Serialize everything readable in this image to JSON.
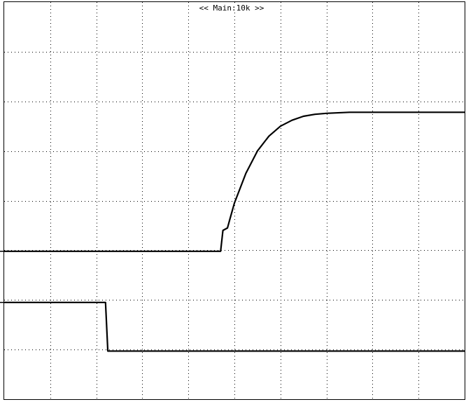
{
  "header": {
    "label": "<< Main:10k >>"
  },
  "colors": {
    "background": "#ffffff",
    "trace": "#000000",
    "grid": "#000000"
  },
  "chart_data": {
    "type": "line",
    "title": "",
    "xlabel": "",
    "ylabel": "",
    "grid": true,
    "grid_style": "dotted",
    "x_divisions": 10,
    "y_divisions": 8,
    "xlim": [
      0,
      10
    ],
    "ylim": [
      0,
      8
    ],
    "series": [
      {
        "name": "",
        "x": [
          0,
          4.7,
          4.75,
          4.85,
          4.9,
          5.0,
          5.25,
          5.5,
          5.75,
          6.0,
          6.25,
          6.5,
          6.75,
          7.0,
          7.5,
          8.0,
          9.0,
          10.0
        ],
        "y": [
          2.98,
          2.98,
          3.4,
          3.45,
          3.62,
          3.95,
          4.55,
          5.0,
          5.3,
          5.5,
          5.62,
          5.7,
          5.74,
          5.76,
          5.78,
          5.78,
          5.78,
          5.78
        ]
      },
      {
        "name": "",
        "x": [
          0,
          2.2,
          2.25,
          10.0
        ],
        "y": [
          1.95,
          1.95,
          0.97,
          0.97
        ]
      }
    ]
  }
}
